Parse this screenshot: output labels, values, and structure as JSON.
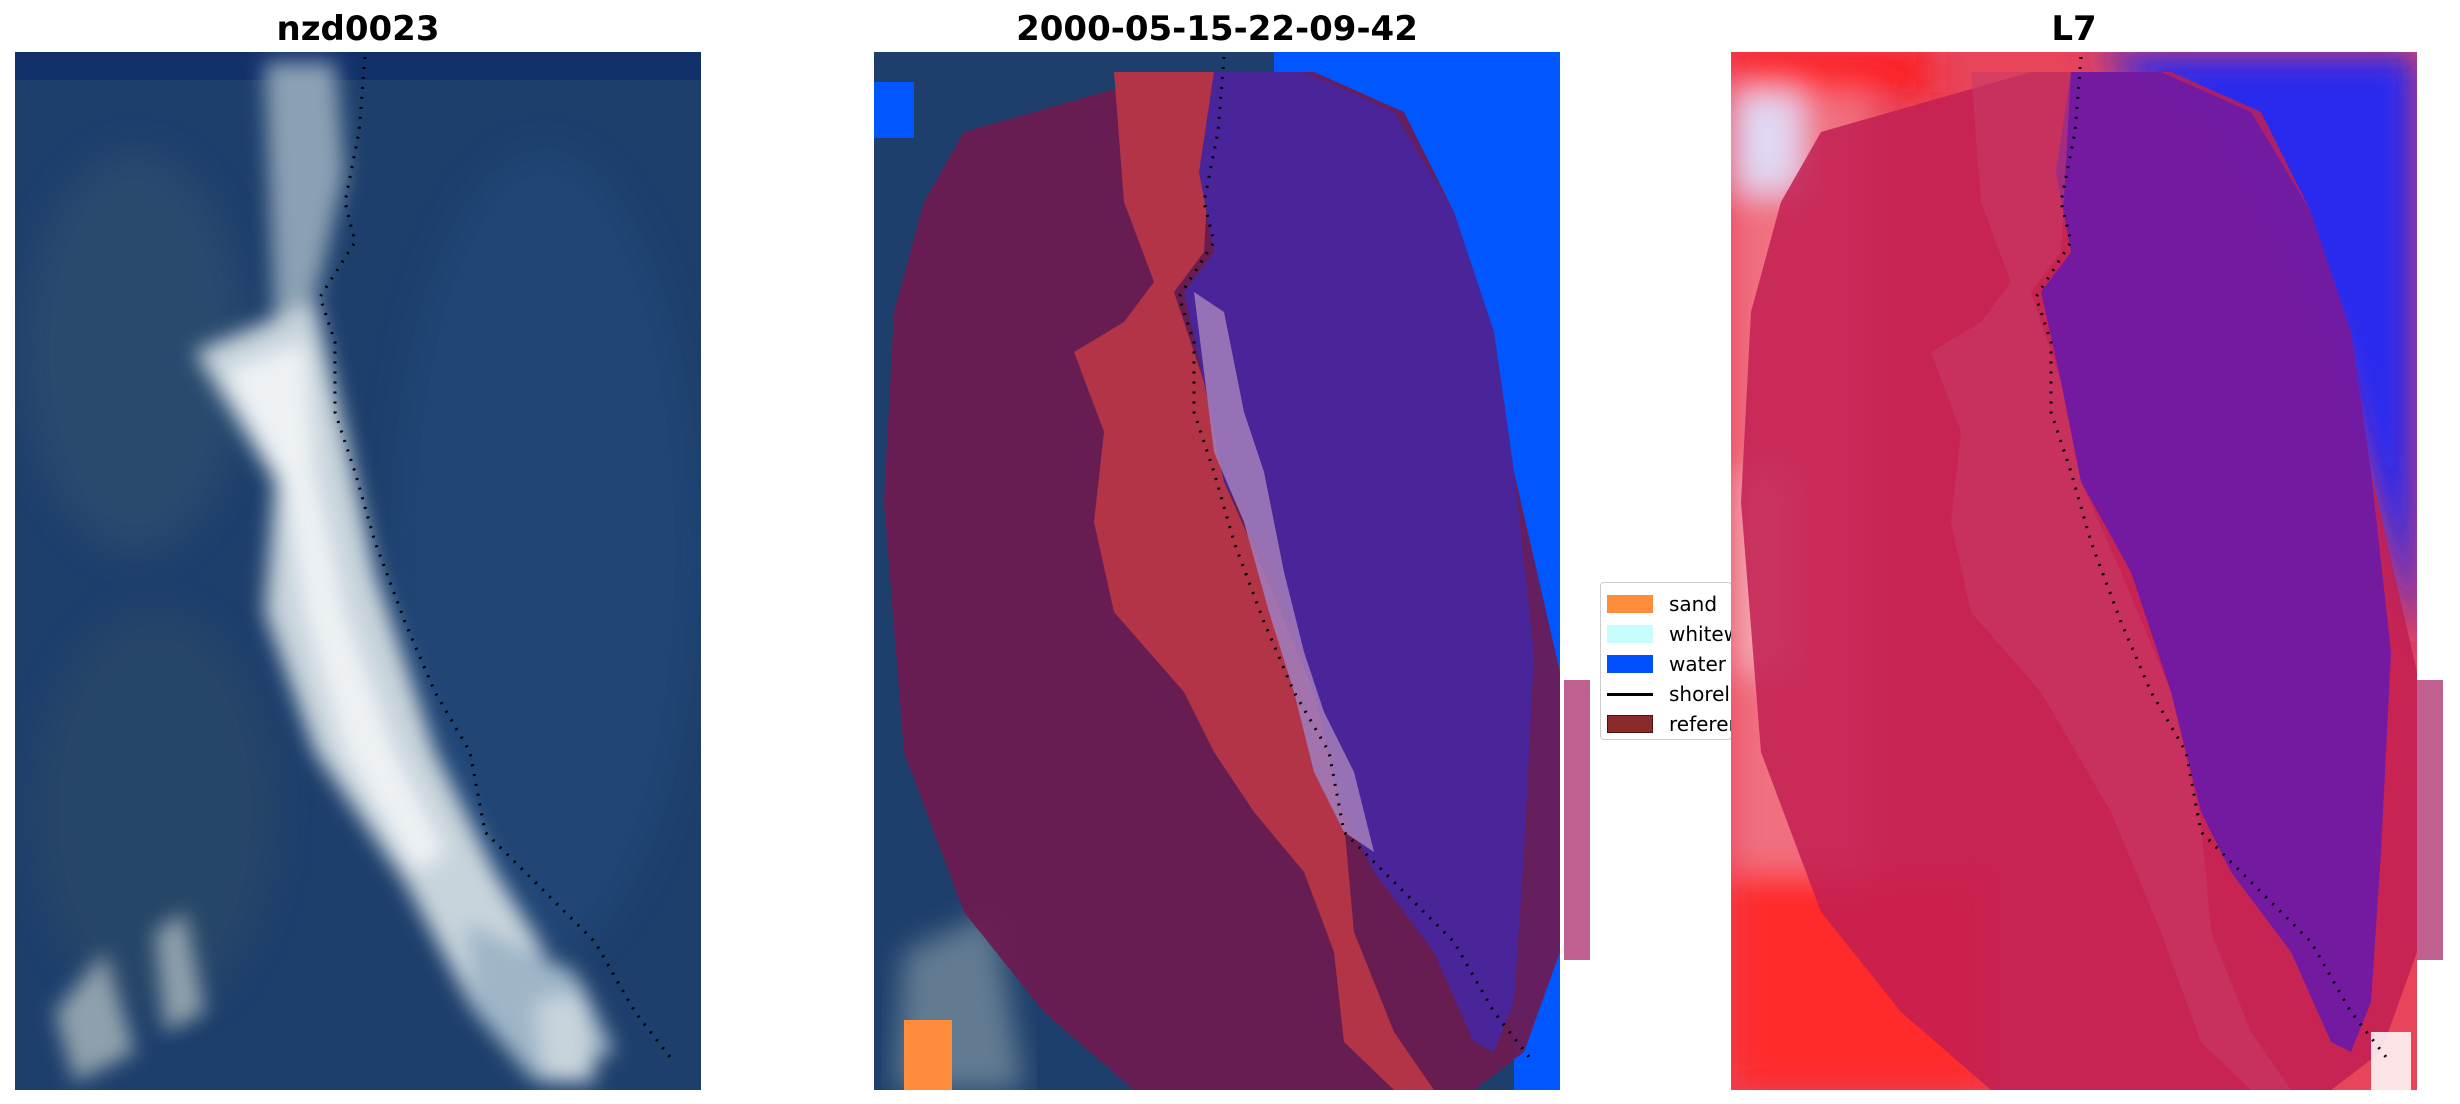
{
  "panels": [
    {
      "title": "nzd0023",
      "icon": "rgb-satellite-image"
    },
    {
      "title": "2000-05-15-22-09-42",
      "icon": "classification-overlay-image"
    },
    {
      "title": "L7",
      "icon": "index-colormap-image"
    }
  ],
  "legend": {
    "items": [
      {
        "label": "sand",
        "color": "#ff8c3a"
      },
      {
        "label": "whitew",
        "color": "#c8fdfd"
      },
      {
        "label": "water",
        "color": "#0050ff"
      },
      {
        "label": "shorel",
        "color": "#000000"
      },
      {
        "label": "referer",
        "color": "#8b2a2a"
      }
    ]
  }
}
